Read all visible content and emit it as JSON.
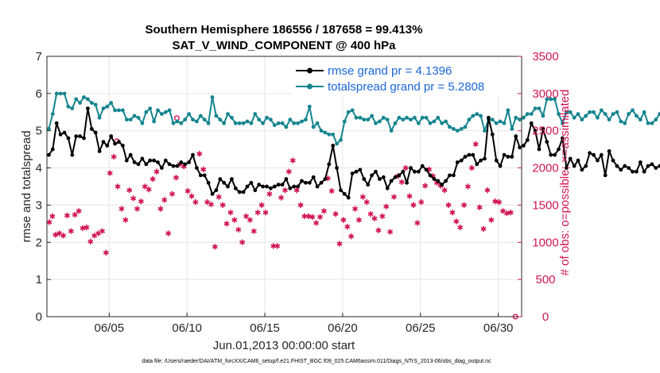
{
  "chart_data": {
    "type": "line",
    "title_line1": "Southern Hemisphere 186556 / 187658 = 99.413%",
    "title_line2": "SAT_V_WIND_COMPONENT @ 400 hPa",
    "ylabel": "rmse and totalspread",
    "ylabel_right": "# of obs: o=possible; ×=assimilated",
    "xlabel": "Jun.01,2013 00:00:00 start",
    "footnote": "data file: /Users/raeder/DAI/ATM_forcXX/CAM6_setup/f.e21.FHIST_BGC.f09_025.CAM6assim.011/Diags_NTrS_2013-06/obs_diag_output.nc",
    "xlim": [
      1,
      31.5
    ],
    "ylim": [
      0,
      7
    ],
    "ylim_right": [
      0,
      3500
    ],
    "yticks": [
      "0",
      "1",
      "2",
      "3",
      "4",
      "5",
      "6",
      "7"
    ],
    "yticks_right": [
      "0",
      "500",
      "1000",
      "1500",
      "2000",
      "2500",
      "3000",
      "3500"
    ],
    "xticks": [
      {
        "day": 5,
        "label": "06/05"
      },
      {
        "day": 10,
        "label": "06/10"
      },
      {
        "day": 15,
        "label": "06/15"
      },
      {
        "day": 20,
        "label": "06/20"
      },
      {
        "day": 25,
        "label": "06/25"
      },
      {
        "day": 30,
        "label": "06/30"
      }
    ],
    "x_start_day": 1.125,
    "x_step_days": 0.25,
    "series": [
      {
        "name": "rmse grand pr = 4.1396",
        "color": "#000000",
        "values": [
          4.35,
          4.5,
          5.2,
          4.9,
          4.95,
          4.8,
          4.35,
          4.85,
          4.85,
          4.8,
          5.6,
          5.05,
          4.95,
          4.45,
          4.7,
          4.6,
          4.85,
          4.65,
          4.7,
          4.6,
          4.2,
          4.35,
          4.15,
          4.1,
          4.25,
          4.1,
          4.2,
          4.2,
          4.15,
          4.0,
          4.2,
          4.1,
          4.05,
          4.05,
          4.15,
          4.1,
          4.15,
          4.35,
          4.0,
          3.8,
          3.8,
          3.6,
          3.3,
          3.4,
          3.7,
          3.6,
          3.5,
          3.7,
          3.45,
          3.35,
          3.35,
          3.5,
          3.6,
          3.4,
          3.55,
          3.5,
          3.5,
          3.45,
          3.5,
          3.55,
          3.55,
          3.7,
          3.45,
          3.5,
          3.5,
          3.65,
          3.6,
          3.6,
          3.75,
          3.5,
          3.6,
          3.7,
          4.1,
          4.6,
          4.0,
          3.4,
          3.3,
          3.2,
          3.85,
          3.9,
          3.95,
          3.7,
          3.55,
          3.8,
          3.9,
          3.7,
          3.75,
          3.45,
          3.65,
          3.75,
          3.8,
          3.9,
          3.6,
          4.0,
          3.9,
          3.9,
          4.05,
          3.95,
          3.8,
          3.7,
          3.65,
          3.55,
          3.65,
          3.8,
          3.8,
          4.15,
          4.2,
          4.3,
          4.35,
          4.35,
          4.1,
          4.2,
          4.25,
          5.35,
          4.9,
          4.2,
          4.05,
          4.35,
          4.3,
          4.3,
          4.85,
          4.55,
          4.6,
          4.75,
          5.2,
          5.0,
          4.5,
          5.05,
          4.7,
          4.35,
          4.35,
          4.5,
          4.8,
          4.0,
          4.25,
          4.05,
          4.2,
          3.95,
          4.05,
          4.4,
          4.35,
          4.2,
          4.35,
          3.8,
          4.45,
          4.2,
          4.05,
          3.95,
          4.05,
          4.0,
          3.9,
          3.9,
          4.15,
          3.9,
          4.05,
          4.1,
          4.0,
          4.05,
          4.0,
          4.05,
          4.15,
          4.2,
          4.3,
          4.35,
          4.65,
          4.45,
          4.45,
          4.45,
          4.2,
          4.55,
          4.55,
          4.7,
          4.8,
          4.3,
          4.2,
          4.1,
          3.95,
          4.15,
          3.6
        ]
      },
      {
        "name": "totalspread grand pr = 5.2808",
        "color": "#15858f",
        "values": [
          5.05,
          5.45,
          6.0,
          6.0,
          6.0,
          5.65,
          5.6,
          5.85,
          5.75,
          5.9,
          5.85,
          5.75,
          5.7,
          5.35,
          5.6,
          5.65,
          5.75,
          5.55,
          5.55,
          5.55,
          5.3,
          5.3,
          5.4,
          5.35,
          5.2,
          5.5,
          5.6,
          5.25,
          5.55,
          5.45,
          5.5,
          5.55,
          5.2,
          5.25,
          5.2,
          5.3,
          5.45,
          5.3,
          5.25,
          5.4,
          5.3,
          5.2,
          5.9,
          5.4,
          5.3,
          5.2,
          5.45,
          5.35,
          5.2,
          5.2,
          5.2,
          5.25,
          5.2,
          5.45,
          5.3,
          5.2,
          5.35,
          5.3,
          5.15,
          5.2,
          5.2,
          5.1,
          5.3,
          5.2,
          5.2,
          5.25,
          5.3,
          5.65,
          5.1,
          5.2,
          5.0,
          4.95,
          4.9,
          4.9,
          4.65,
          4.75,
          5.25,
          5.5,
          5.55,
          5.35,
          5.35,
          5.3,
          5.3,
          5.4,
          5.2,
          5.25,
          5.35,
          5.3,
          5.0,
          5.2,
          5.35,
          5.3,
          5.35,
          5.3,
          5.35,
          5.2,
          5.35,
          5.35,
          5.2,
          5.25,
          5.35,
          5.2,
          5.25,
          5.1,
          5.05,
          5.0,
          5.05,
          5.1,
          5.3,
          5.4,
          5.45,
          5.4,
          5.0,
          5.3,
          5.3,
          5.2,
          5.25,
          5.2,
          5.55,
          5.05,
          5.35,
          5.3,
          5.35,
          5.45,
          5.45,
          5.6,
          5.6,
          5.4,
          5.85,
          5.85,
          5.85,
          5.45,
          5.2,
          5.5,
          5.5,
          5.35,
          5.45,
          5.3,
          5.4,
          5.5,
          5.5,
          5.35,
          5.55,
          5.45,
          5.3,
          5.45,
          5.5,
          5.25,
          5.2,
          5.45,
          5.55,
          5.4,
          5.3,
          5.5,
          5.2,
          5.2,
          5.3,
          5.45,
          5.55,
          5.4,
          5.5,
          5.4,
          4.8,
          4.8,
          5.6,
          5.7,
          5.55,
          5.65,
          5.55,
          5.55,
          5.55,
          5.45,
          5.45,
          5.3,
          5.4,
          5.6,
          5.5,
          5.45,
          5.55,
          5.3,
          5.25,
          5.65,
          5.6,
          5.55,
          5.5,
          5.4
        ]
      }
    ],
    "obs_assimilated_count": [
      {
        "day": 1.15,
        "v": 1270
      },
      {
        "day": 1.35,
        "v": 1350
      },
      {
        "day": 1.55,
        "v": 1100
      },
      {
        "day": 1.8,
        "v": 1120
      },
      {
        "day": 2.05,
        "v": 1090
      },
      {
        "day": 2.3,
        "v": 1360
      },
      {
        "day": 2.55,
        "v": 1150
      },
      {
        "day": 2.8,
        "v": 1370
      },
      {
        "day": 3.05,
        "v": 1420
      },
      {
        "day": 3.3,
        "v": 1190
      },
      {
        "day": 3.55,
        "v": 1200
      },
      {
        "day": 3.8,
        "v": 1010
      },
      {
        "day": 4.05,
        "v": 1090
      },
      {
        "day": 4.3,
        "v": 1120
      },
      {
        "day": 4.55,
        "v": 1150
      },
      {
        "day": 4.8,
        "v": 860
      },
      {
        "day": 5.05,
        "v": 1930
      },
      {
        "day": 5.3,
        "v": 2150
      },
      {
        "day": 5.55,
        "v": 1750
      },
      {
        "day": 5.8,
        "v": 1450
      },
      {
        "day": 6.05,
        "v": 1300
      },
      {
        "day": 6.3,
        "v": 1700
      },
      {
        "day": 6.55,
        "v": 1590
      },
      {
        "day": 6.8,
        "v": 1450
      },
      {
        "day": 7.05,
        "v": 1550
      },
      {
        "day": 7.3,
        "v": 1750
      },
      {
        "day": 7.55,
        "v": 1710
      },
      {
        "day": 7.8,
        "v": 1850
      },
      {
        "day": 8.05,
        "v": 1950
      },
      {
        "day": 8.3,
        "v": 1450
      },
      {
        "day": 8.55,
        "v": 1570
      },
      {
        "day": 8.8,
        "v": 1120
      },
      {
        "day": 9.05,
        "v": 1650
      },
      {
        "day": 9.3,
        "v": 1870
      },
      {
        "day": 9.55,
        "v": 2050
      },
      {
        "day": 9.8,
        "v": 2020
      },
      {
        "day": 10.05,
        "v": 1690
      },
      {
        "day": 10.3,
        "v": 1620
      },
      {
        "day": 10.55,
        "v": 1540
      },
      {
        "day": 10.8,
        "v": 2190
      },
      {
        "day": 11.05,
        "v": 1980
      },
      {
        "day": 11.3,
        "v": 1540
      },
      {
        "day": 11.55,
        "v": 1510
      },
      {
        "day": 11.8,
        "v": 940
      },
      {
        "day": 12.05,
        "v": 1610
      },
      {
        "day": 12.3,
        "v": 1500
      },
      {
        "day": 12.55,
        "v": 1250
      },
      {
        "day": 12.8,
        "v": 1400
      },
      {
        "day": 13.05,
        "v": 1300
      },
      {
        "day": 13.3,
        "v": 1170
      },
      {
        "day": 13.55,
        "v": 1000
      },
      {
        "day": 13.8,
        "v": 1350
      },
      {
        "day": 14.05,
        "v": 1300
      },
      {
        "day": 14.3,
        "v": 1150
      },
      {
        "day": 14.55,
        "v": 1400
      },
      {
        "day": 14.8,
        "v": 1500
      },
      {
        "day": 15.05,
        "v": 1400
      },
      {
        "day": 15.3,
        "v": 1650
      },
      {
        "day": 15.55,
        "v": 950
      },
      {
        "day": 15.8,
        "v": 950
      },
      {
        "day": 16.05,
        "v": 1600
      },
      {
        "day": 16.3,
        "v": 1700
      },
      {
        "day": 16.55,
        "v": 1950
      },
      {
        "day": 16.8,
        "v": 2100
      },
      {
        "day": 17.05,
        "v": 1700
      },
      {
        "day": 17.3,
        "v": 1500
      },
      {
        "day": 17.55,
        "v": 1350
      },
      {
        "day": 17.8,
        "v": 1350
      },
      {
        "day": 18.05,
        "v": 1340
      },
      {
        "day": 18.3,
        "v": 1260
      },
      {
        "day": 18.55,
        "v": 1340
      },
      {
        "day": 18.8,
        "v": 1420
      },
      {
        "day": 19.05,
        "v": 1860
      },
      {
        "day": 19.3,
        "v": 1690
      },
      {
        "day": 19.55,
        "v": 1380
      },
      {
        "day": 19.8,
        "v": 980
      },
      {
        "day": 20.05,
        "v": 1300
      },
      {
        "day": 20.3,
        "v": 1210
      },
      {
        "day": 20.55,
        "v": 1080
      },
      {
        "day": 20.8,
        "v": 1450
      },
      {
        "day": 21.05,
        "v": 1300
      },
      {
        "day": 21.3,
        "v": 1610
      },
      {
        "day": 21.55,
        "v": 1540
      },
      {
        "day": 21.8,
        "v": 1380
      },
      {
        "day": 22.05,
        "v": 1320
      },
      {
        "day": 22.3,
        "v": 1160
      },
      {
        "day": 22.55,
        "v": 1350
      },
      {
        "day": 22.8,
        "v": 1480
      },
      {
        "day": 23.05,
        "v": 1140
      },
      {
        "day": 23.3,
        "v": 1610
      },
      {
        "day": 23.55,
        "v": 1890
      },
      {
        "day": 23.8,
        "v": 1810
      },
      {
        "day": 24.05,
        "v": 2000
      },
      {
        "day": 24.3,
        "v": 1620
      },
      {
        "day": 24.55,
        "v": 1500
      },
      {
        "day": 24.8,
        "v": 1260
      },
      {
        "day": 25.05,
        "v": 1540
      },
      {
        "day": 25.3,
        "v": 1760
      },
      {
        "day": 25.55,
        "v": 1980
      },
      {
        "day": 25.8,
        "v": 1890
      },
      {
        "day": 26.05,
        "v": 1800
      },
      {
        "day": 26.3,
        "v": 1760
      },
      {
        "day": 26.55,
        "v": 1700
      },
      {
        "day": 26.8,
        "v": 1500
      },
      {
        "day": 27.05,
        "v": 1400
      },
      {
        "day": 27.3,
        "v": 1280
      },
      {
        "day": 27.55,
        "v": 1200
      },
      {
        "day": 27.8,
        "v": 1500
      },
      {
        "day": 28.05,
        "v": 1750
      },
      {
        "day": 28.3,
        "v": 2000
      },
      {
        "day": 28.55,
        "v": 2320
      },
      {
        "day": 28.8,
        "v": 1470
      },
      {
        "day": 29.05,
        "v": 1180
      },
      {
        "day": 29.3,
        "v": 1700
      },
      {
        "day": 29.55,
        "v": 1300
      },
      {
        "day": 29.8,
        "v": 1550
      },
      {
        "day": 30.05,
        "v": 1540
      },
      {
        "day": 30.3,
        "v": 1420
      },
      {
        "day": 30.55,
        "v": 1390
      },
      {
        "day": 30.8,
        "v": 1400
      }
    ],
    "obs_possible_count": [
      {
        "day": 5.5,
        "v": 2360
      },
      {
        "day": 9.35,
        "v": 2670
      },
      {
        "day": 31.1,
        "v": 0
      }
    ],
    "colors": {
      "rmse": "#000000",
      "totalspread": "#15858f",
      "obs": "#d11453",
      "legend_text": "#1a66d9",
      "grid": "#e6e6e6"
    }
  }
}
